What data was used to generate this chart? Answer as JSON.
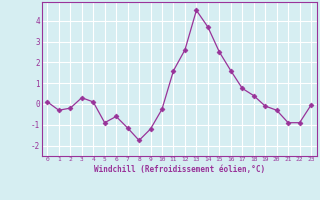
{
  "x": [
    0,
    1,
    2,
    3,
    4,
    5,
    6,
    7,
    8,
    9,
    10,
    11,
    12,
    13,
    14,
    15,
    16,
    17,
    18,
    19,
    20,
    21,
    22,
    23
  ],
  "y": [
    0.1,
    -0.3,
    -0.2,
    0.3,
    0.1,
    -0.9,
    -0.6,
    -1.15,
    -1.75,
    -1.2,
    -0.25,
    1.6,
    2.6,
    4.5,
    3.7,
    2.5,
    1.6,
    0.75,
    0.4,
    -0.1,
    -0.3,
    -0.9,
    -0.9,
    -0.05
  ],
  "line_color": "#993399",
  "marker": "D",
  "marker_size": 2.5,
  "bg_color": "#d6eef2",
  "grid_color": "#b8dde6",
  "xlabel": "Windchill (Refroidissement éolien,°C)",
  "xlabel_color": "#993399",
  "tick_color": "#993399",
  "ylim": [
    -2.5,
    4.9
  ],
  "xlim": [
    -0.5,
    23.5
  ],
  "yticks": [
    -2,
    -1,
    0,
    1,
    2,
    3,
    4
  ],
  "xtick_labels": [
    "0",
    "1",
    "2",
    "3",
    "4",
    "5",
    "6",
    "7",
    "8",
    "9",
    "10",
    "11",
    "12",
    "13",
    "14",
    "15",
    "16",
    "17",
    "18",
    "19",
    "20",
    "21",
    "22",
    "23"
  ]
}
